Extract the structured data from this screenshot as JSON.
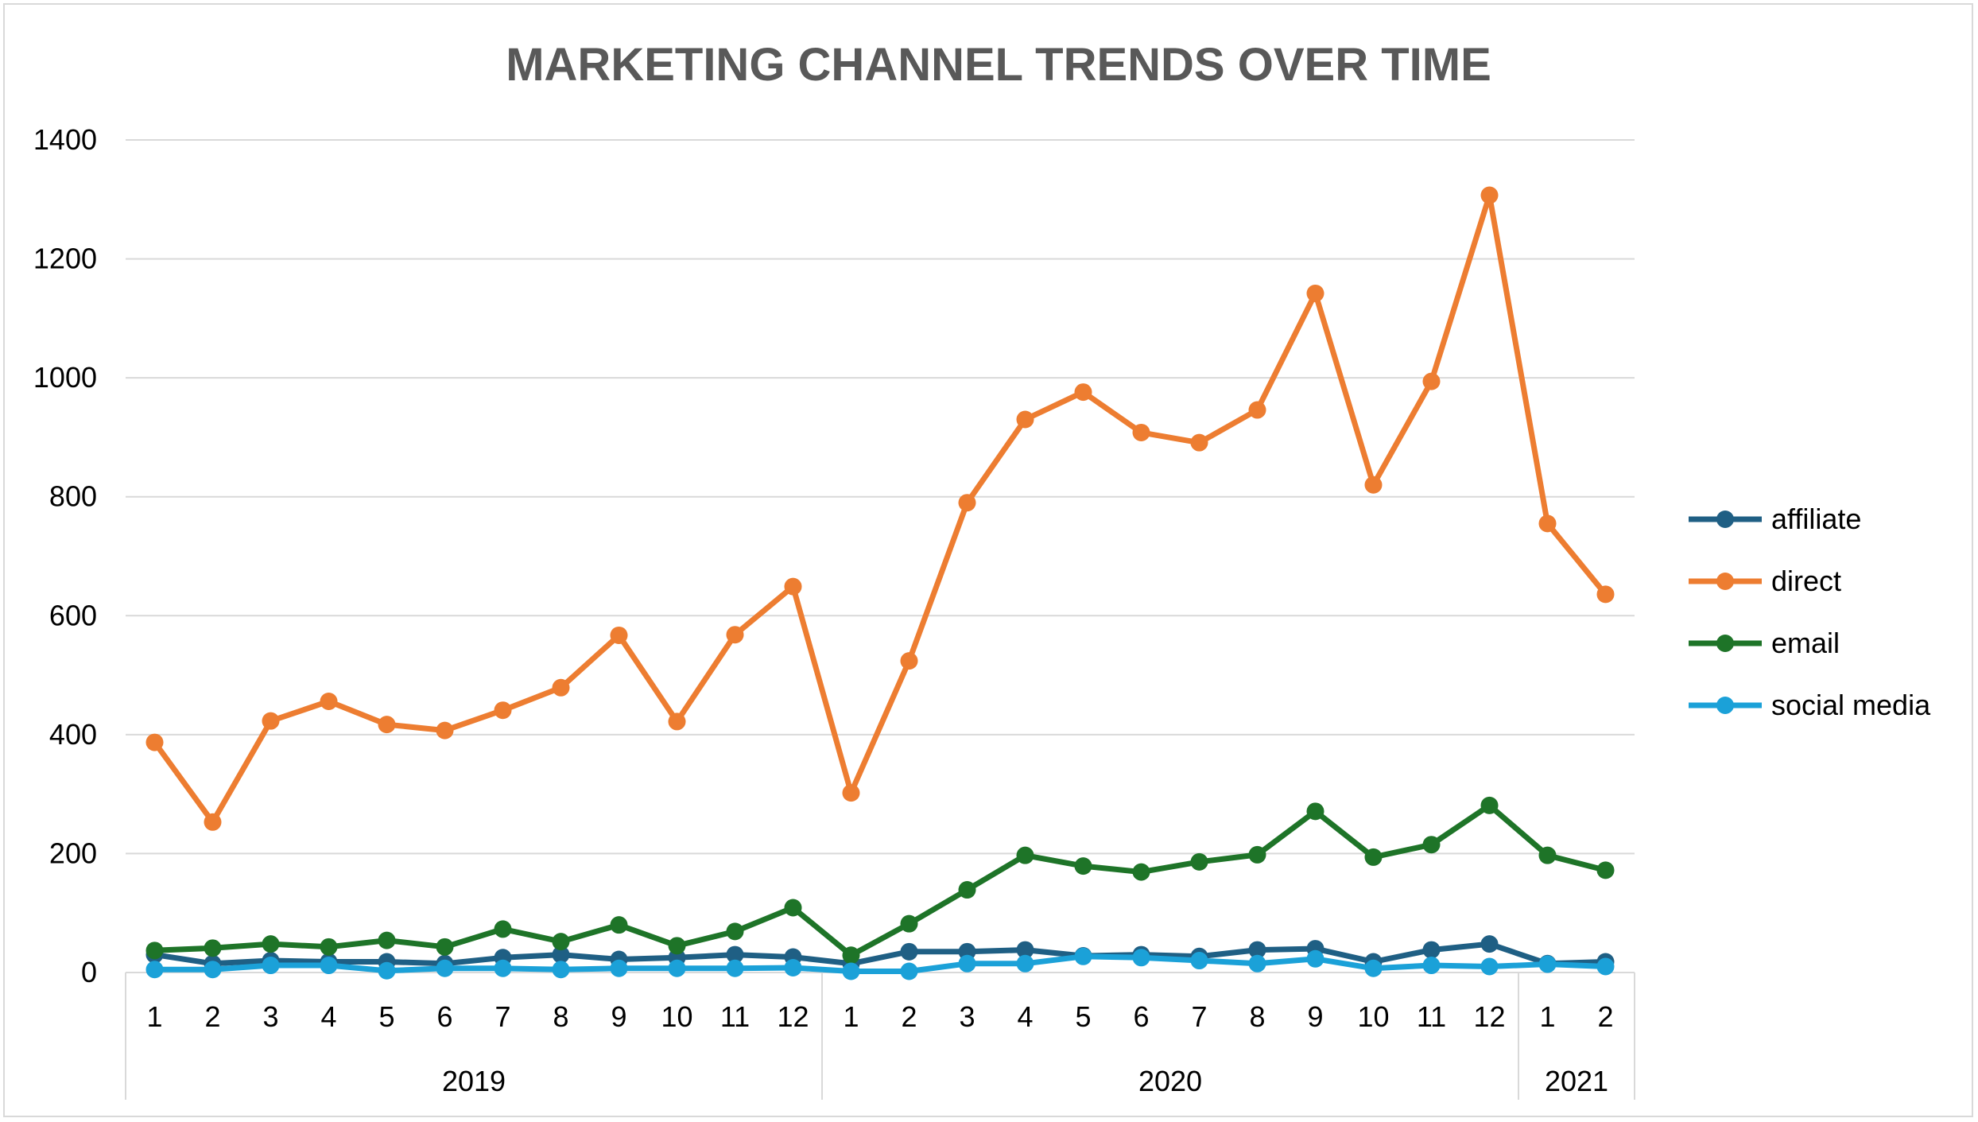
{
  "chart_data": {
    "type": "line",
    "title": "MARKETING CHANNEL TRENDS OVER TIME",
    "xlabel": "",
    "ylabel": "",
    "ylim": [
      0,
      1400
    ],
    "yticks": [
      0,
      200,
      400,
      600,
      800,
      1000,
      1200,
      1400
    ],
    "grid": true,
    "legend_position": "right",
    "x": [
      "1",
      "2",
      "3",
      "4",
      "5",
      "6",
      "7",
      "8",
      "9",
      "10",
      "11",
      "12",
      "1",
      "2",
      "3",
      "4",
      "5",
      "6",
      "7",
      "8",
      "9",
      "10",
      "11",
      "12",
      "1",
      "2"
    ],
    "year_groups": [
      {
        "label": "2019",
        "count": 12
      },
      {
        "label": "2020",
        "count": 12
      },
      {
        "label": "2021",
        "count": 2
      }
    ],
    "series": [
      {
        "name": "affiliate",
        "color": "#1f5f84",
        "values": [
          30,
          15,
          20,
          18,
          18,
          15,
          25,
          30,
          22,
          25,
          30,
          26,
          15,
          35,
          35,
          38,
          28,
          30,
          27,
          38,
          40,
          18,
          38,
          48,
          15,
          18
        ]
      },
      {
        "name": "direct",
        "color": "#ed7d31",
        "values": [
          387,
          253,
          423,
          456,
          417,
          407,
          441,
          479,
          567,
          422,
          568,
          649,
          302,
          524,
          790,
          930,
          976,
          908,
          891,
          946,
          1142,
          820,
          994,
          1307,
          755,
          636
        ]
      },
      {
        "name": "email",
        "color": "#1e7428",
        "values": [
          37,
          41,
          48,
          43,
          54,
          43,
          73,
          52,
          80,
          45,
          69,
          109,
          29,
          82,
          139,
          197,
          179,
          169,
          186,
          198,
          271,
          194,
          215,
          281,
          197,
          172
        ]
      },
      {
        "name": "social media",
        "color": "#1ba1d8",
        "values": [
          5,
          5,
          12,
          12,
          3,
          7,
          7,
          5,
          7,
          7,
          7,
          8,
          2,
          2,
          15,
          15,
          27,
          25,
          20,
          15,
          23,
          7,
          12,
          10,
          14,
          10
        ]
      }
    ]
  }
}
